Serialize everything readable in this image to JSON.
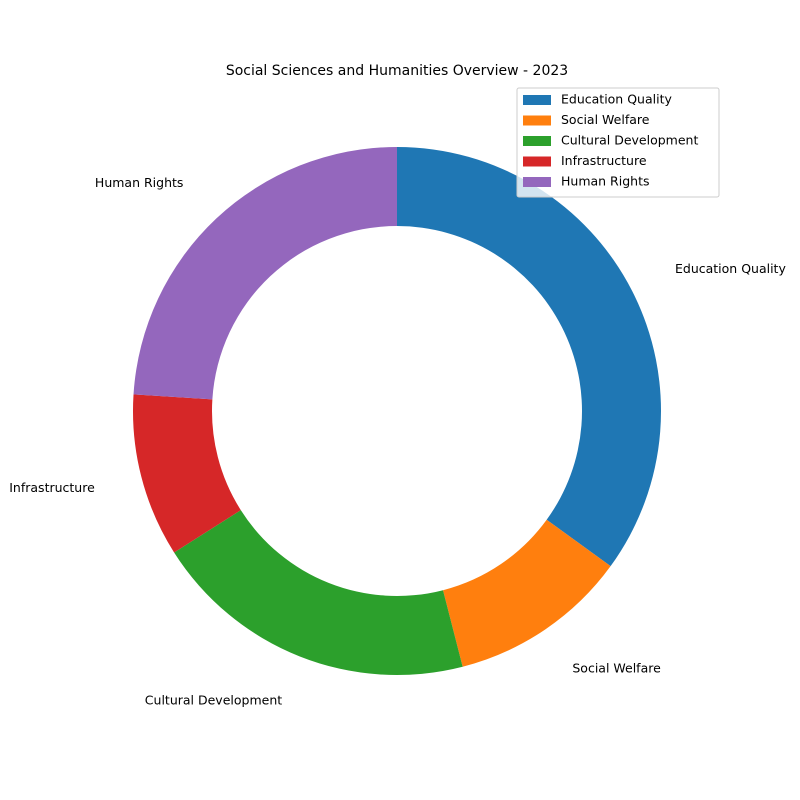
{
  "chart_data": {
    "type": "pie",
    "style": "donut",
    "title": "Social Sciences and Humanities Overview - 2023",
    "categories": [
      "Education Quality",
      "Social Welfare",
      "Cultural Development",
      "Infrastructure",
      "Human Rights"
    ],
    "values": [
      35,
      11,
      20,
      10,
      24
    ],
    "colors": [
      "#1f77b4",
      "#ff7f0e",
      "#2ca02c",
      "#d62728",
      "#9467bd"
    ],
    "legend": {
      "placement": "top-right",
      "entries": [
        "Education Quality",
        "Social Welfare",
        "Cultural Development",
        "Infrastructure",
        "Human Rights"
      ]
    }
  }
}
